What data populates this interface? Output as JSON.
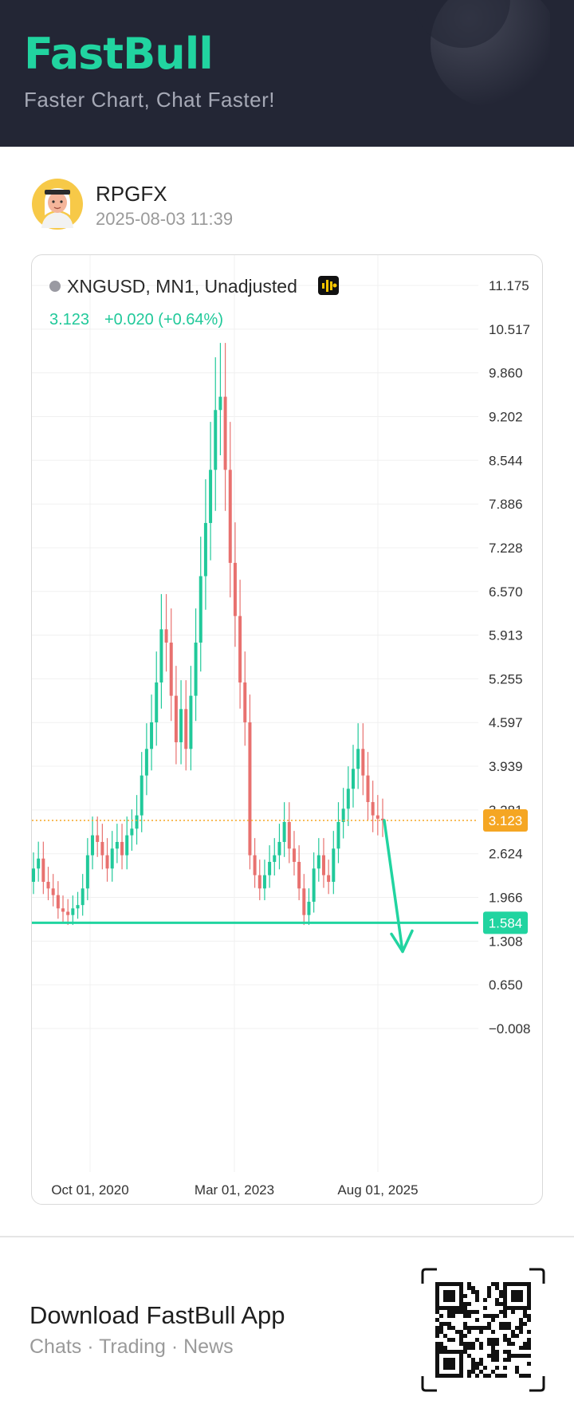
{
  "header": {
    "brand": "FastBull",
    "tagline": "Faster Chart, Chat Faster!"
  },
  "author": {
    "name": "RPGFX",
    "timestamp": "2025-08-03 11:39"
  },
  "chart": {
    "symbol_line": "XNGUSD, MN1, Unadjusted",
    "price": "3.123",
    "change": "+0.020 (+0.64%)",
    "current_price_tag": "3.123",
    "support_tag": "1.584"
  },
  "chart_data": {
    "type": "candlestick",
    "title": "XNGUSD, MN1, Unadjusted",
    "y_ticks": [
      "11.175",
      "10.517",
      "9.860",
      "9.202",
      "8.544",
      "7.886",
      "7.228",
      "6.570",
      "5.913",
      "5.255",
      "4.597",
      "3.939",
      "3.281",
      "2.624",
      "1.966",
      "1.308",
      "0.650",
      "−0.008"
    ],
    "x_ticks": [
      "Oct 01, 2020",
      "Mar 01, 2023",
      "Aug 01, 2025"
    ],
    "ylim": [
      -0.008,
      11.175
    ],
    "grid": true,
    "last_price": 3.123,
    "horizontal_lines": [
      {
        "name": "current price",
        "value": 3.123,
        "style": "dotted",
        "color": "#f5a623"
      },
      {
        "name": "support",
        "value": 1.584,
        "style": "solid",
        "color": "#21d4a0"
      }
    ],
    "annotation": {
      "type": "arrow",
      "from": 3.123,
      "to": 1.75,
      "direction": "down",
      "color": "#21d4a0"
    },
    "ohlc_approx": [
      2.4,
      2.55,
      2.2,
      2.1,
      2.0,
      1.8,
      1.75,
      1.7,
      1.8,
      1.85,
      2.1,
      2.6,
      2.9,
      2.8,
      2.6,
      2.4,
      2.7,
      2.8,
      2.6,
      2.9,
      3.0,
      3.2,
      3.8,
      4.2,
      4.6,
      5.2,
      6.0,
      5.8,
      5.0,
      4.3,
      4.8,
      4.2,
      5.0,
      5.8,
      6.8,
      7.6,
      8.4,
      9.3,
      9.5,
      8.4,
      7.0,
      6.2,
      5.2,
      4.6,
      2.6,
      2.3,
      2.1,
      2.3,
      2.5,
      2.6,
      2.8,
      3.1,
      2.7,
      2.5,
      2.1,
      1.7,
      1.9,
      2.4,
      2.6,
      2.3,
      2.2,
      2.7,
      3.1,
      3.3,
      3.6,
      3.9,
      4.2,
      3.8,
      3.4,
      3.2,
      3.15,
      3.123
    ],
    "colors": {
      "up": "#21c99a",
      "down": "#e8716f"
    }
  },
  "footer": {
    "title": "Download FastBull App",
    "subtitle": "Chats · Trading · News"
  }
}
